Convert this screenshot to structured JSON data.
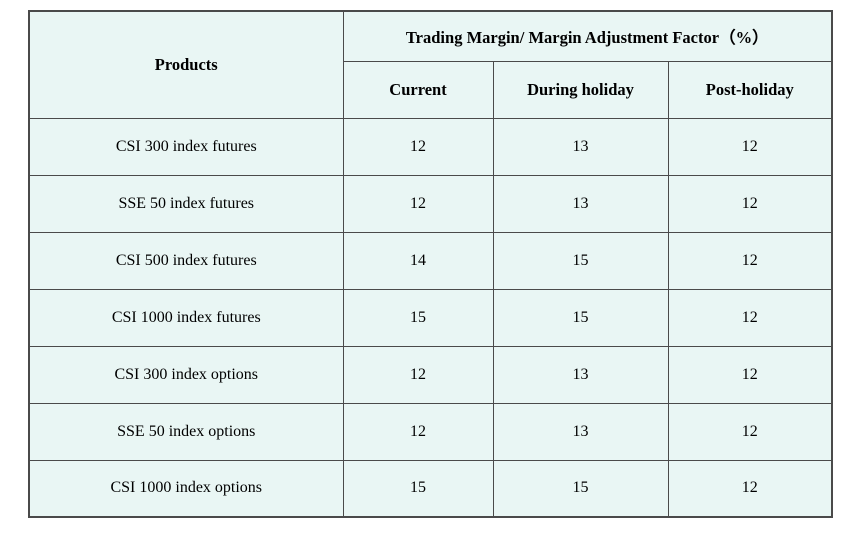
{
  "colors": {
    "cell_background": "#e9f6f4",
    "border": "#4a4a4a",
    "text": "#000000"
  },
  "table": {
    "products_header": "Products",
    "group_header": "Trading Margin/ Margin Adjustment Factor（%）",
    "columns": [
      "Current",
      "During holiday",
      "Post-holiday"
    ],
    "rows": [
      {
        "product": "CSI 300 index futures",
        "current": "12",
        "during_holiday": "13",
        "post_holiday": "12"
      },
      {
        "product": "SSE 50 index futures",
        "current": "12",
        "during_holiday": "13",
        "post_holiday": "12"
      },
      {
        "product": "CSI 500 index futures",
        "current": "14",
        "during_holiday": "15",
        "post_holiday": "12"
      },
      {
        "product": "CSI 1000 index futures",
        "current": "15",
        "during_holiday": "15",
        "post_holiday": "12"
      },
      {
        "product": "CSI 300 index options",
        "current": "12",
        "during_holiday": "13",
        "post_holiday": "12"
      },
      {
        "product": "SSE 50 index options",
        "current": "12",
        "during_holiday": "13",
        "post_holiday": "12"
      },
      {
        "product": "CSI 1000 index options",
        "current": "15",
        "during_holiday": "15",
        "post_holiday": "12"
      }
    ]
  }
}
